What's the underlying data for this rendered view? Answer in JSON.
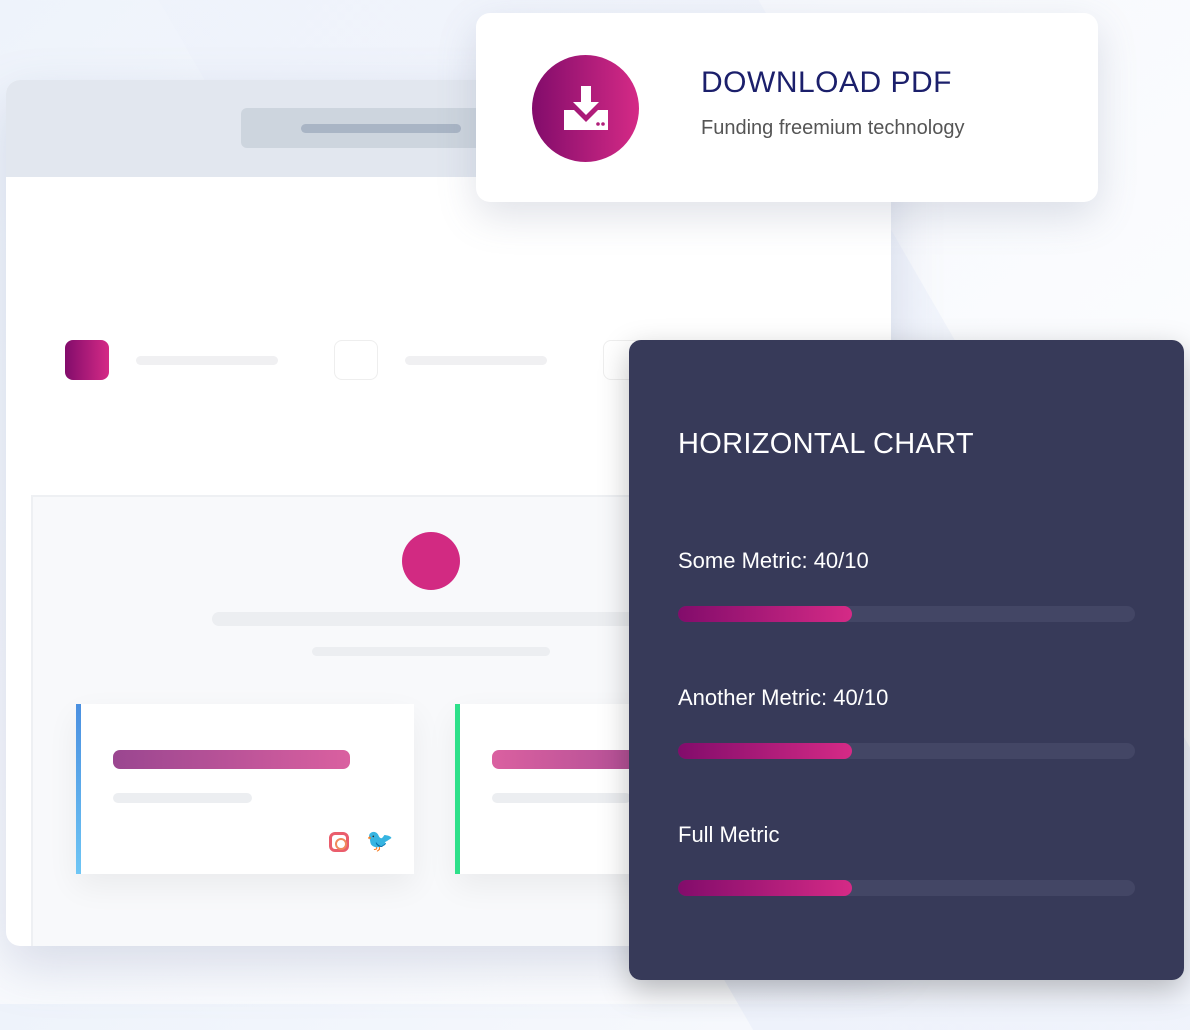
{
  "download": {
    "title": "DOWNLOAD PDF",
    "subtitle": "Funding freemium technology",
    "icon": "download-icon"
  },
  "chart": {
    "title": "HORIZONTAL CHART",
    "metrics": [
      {
        "label": "Some Metric: 40/10",
        "fill": 0.38
      },
      {
        "label": "Another Metric: 40/10",
        "fill": 0.38
      },
      {
        "label": "Full Metric",
        "fill": 0.38
      }
    ],
    "colors": {
      "bar_start": "#820c6b",
      "bar_end": "#d52a86",
      "track": "#434665",
      "panel": "#373a59"
    }
  },
  "social_icons": [
    "instagram-icon",
    "twitter-icon"
  ]
}
